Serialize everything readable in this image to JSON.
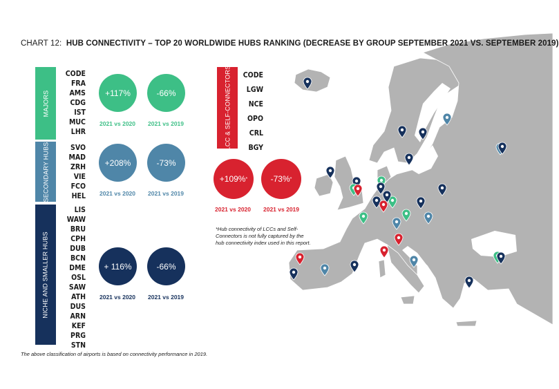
{
  "title": {
    "prefix": "CHART 12:",
    "main": "HUB CONNECTIVITY – TOP 20 WORLDWIDE HUBS RANKING (DECREASE BY GROUP SEPTEMBER 2021 VS. SEPTEMBER 2019)"
  },
  "colors": {
    "majors": "#3dbf86",
    "secondary": "#4f86a8",
    "niche": "#16315c",
    "lcc": "#d8222f",
    "map": "#b3b3b3"
  },
  "chart_data": [
    {
      "type": "table",
      "group": "MAJORS",
      "code_header": "CODE",
      "airports": [
        "FRA",
        "AMS",
        "CDG",
        "IST",
        "MUC",
        "LHR"
      ],
      "stats": [
        {
          "value": "+117%",
          "label": "2021 vs 2020"
        },
        {
          "value": "-66%",
          "label": "2021 vs 2019"
        }
      ]
    },
    {
      "type": "table",
      "group": "SECONDARY HUBS",
      "airports": [
        "SVO",
        "MAD",
        "ZRH",
        "VIE",
        "FCO",
        "HEL"
      ],
      "stats": [
        {
          "value": "+208%",
          "label": "2021 vs 2020"
        },
        {
          "value": "-73%",
          "label": "2021 vs 2019"
        }
      ]
    },
    {
      "type": "table",
      "group": "NICHE AND SMALLER HUBS",
      "airports": [
        "LIS",
        "WAW",
        "BRU",
        "CPH",
        "DUB",
        "BCN",
        "DME",
        "OSL",
        "SAW",
        "ATH",
        "DUS",
        "ARN",
        "KEF",
        "PRG",
        "STN"
      ],
      "stats": [
        {
          "value": "+ 116%",
          "label": "2021 vs 2020"
        },
        {
          "value": "-66%",
          "label": "2021 vs 2019"
        }
      ]
    },
    {
      "type": "table",
      "group": "LCC & SELF-CONNECTORS",
      "code_header": "CODE",
      "airports": [
        "LGW",
        "NCE",
        "OPO",
        "CRL",
        "BGY"
      ],
      "stats": [
        {
          "value": "+109%",
          "sup": "*",
          "label": "2021 vs 2020"
        },
        {
          "value": "-73%",
          "sup": "*",
          "label": "2021 vs 2019"
        }
      ]
    }
  ],
  "footnote": "*Hub connectivity of LCCs and Self-Connectors is not fully captured by the hub connectivity index used in this report.",
  "source_note": "The above classification of airports is based on connectivity performance in 2019."
}
